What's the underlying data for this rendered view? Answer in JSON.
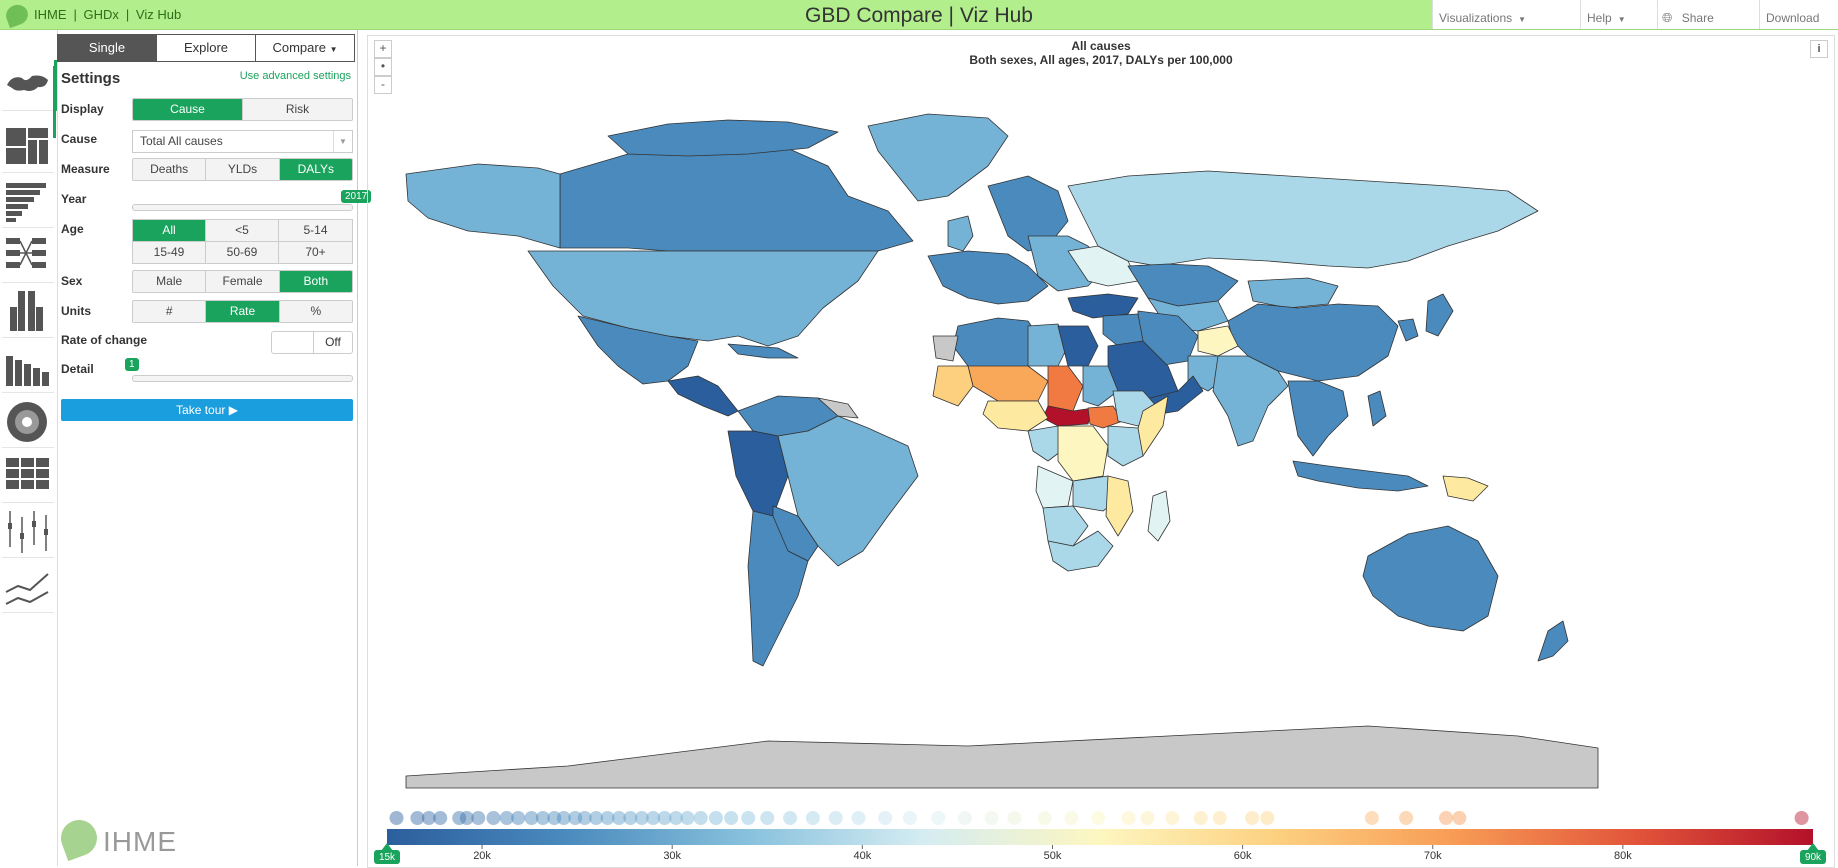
{
  "topbar": {
    "links": [
      "IHME",
      "GHDx",
      "Viz Hub"
    ],
    "title": "GBD Compare | Viz Hub",
    "visualizations": "Visualizations",
    "help": "Help",
    "share": "Share",
    "download": "Download"
  },
  "rail": {
    "icons": [
      "world-map-icon",
      "treemap-icon",
      "stacked-bar-icon",
      "arrow-diagram-icon",
      "pyramid-icon",
      "bar-icon",
      "sunburst-icon",
      "heatmap-icon",
      "range-icon",
      "line-chart-icon"
    ]
  },
  "panel": {
    "tabs": [
      "Single",
      "Explore",
      "Compare"
    ],
    "settings_title": "Settings",
    "advanced_link": "Use advanced settings",
    "display": {
      "label": "Display",
      "options": [
        "Cause",
        "Risk"
      ],
      "selected": 0
    },
    "cause": {
      "label": "Cause",
      "value": "Total All causes"
    },
    "measure": {
      "label": "Measure",
      "options": [
        "Deaths",
        "YLDs",
        "DALYs"
      ],
      "selected": 2
    },
    "year": {
      "label": "Year",
      "value": "2017"
    },
    "age": {
      "label": "Age",
      "options": [
        "All",
        "<5",
        "5-14",
        "15-49",
        "50-69",
        "70+"
      ],
      "selected": 0
    },
    "sex": {
      "label": "Sex",
      "options": [
        "Male",
        "Female",
        "Both"
      ],
      "selected": 2
    },
    "units": {
      "label": "Units",
      "options": [
        "#",
        "Rate",
        "%"
      ],
      "selected": 1
    },
    "rate_of_change": {
      "label": "Rate of change",
      "value": "Off"
    },
    "detail": {
      "label": "Detail",
      "value": "1"
    },
    "tour_button": "Take tour ▶",
    "logo_text": "IHME"
  },
  "map": {
    "title": "All causes",
    "subtitle": "Both sexes, All ages, 2017, DALYs per 100,000",
    "zoom_in": "+",
    "zoom_reset": "•",
    "zoom_out": "-",
    "info": "i",
    "colors": {
      "dark_blue": "#2b5e9d",
      "blue": "#4a8abd",
      "mid_blue": "#74b2d6",
      "light_blue": "#abd8e8",
      "pale": "#e2f3f3",
      "yellow": "#fde9a0",
      "orange": "#f9a85a",
      "red_orange": "#f07a42",
      "dark_red": "#b3112a",
      "gray": "#c8c8c8"
    }
  },
  "legend": {
    "min_label": "15k",
    "max_label": "90k",
    "ticks": [
      "20k",
      "30k",
      "40k",
      "50k",
      "60k",
      "70k",
      "80k"
    ],
    "tick_values": [
      20,
      30,
      40,
      50,
      60,
      70,
      80
    ],
    "domain": [
      15,
      90
    ],
    "color_stops": [
      "#2b5e9d",
      "#4a8abd",
      "#86c0dc",
      "#d4ecf2",
      "#fdf6c0",
      "#fdd080",
      "#f79b55",
      "#e2553a",
      "#b3112a"
    ],
    "dot_values": [
      15.5,
      16.6,
      17.2,
      17.8,
      18.8,
      19.2,
      19.8,
      20.6,
      21.3,
      21.9,
      22.6,
      23.2,
      23.8,
      24.3,
      24.9,
      25.4,
      26.0,
      26.6,
      27.2,
      27.8,
      28.4,
      29.0,
      29.6,
      30.2,
      30.8,
      31.5,
      32.3,
      33.1,
      34.0,
      35.0,
      36.2,
      37.4,
      38.6,
      39.8,
      41.2,
      42.5,
      44.0,
      45.4,
      46.8,
      48.0,
      49.6,
      51.0,
      52.4,
      54.0,
      55.0,
      56.3,
      57.8,
      58.8,
      60.5,
      61.3,
      66.8,
      68.6,
      70.7,
      71.4,
      89.4
    ]
  }
}
